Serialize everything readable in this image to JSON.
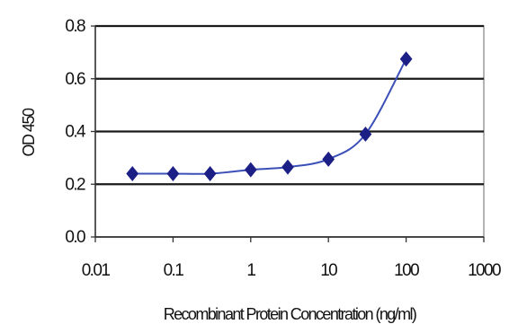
{
  "chart_data": {
    "type": "line",
    "title": "",
    "xlabel": "Recombinant Protein Concentration (ng/ml)",
    "ylabel": "OD 450",
    "x_scale": "log",
    "xlim": [
      0.01,
      1000
    ],
    "ylim": [
      0.0,
      0.8
    ],
    "x_ticks": [
      "0.01",
      "0.1",
      "1",
      "10",
      "100",
      "1000"
    ],
    "y_ticks": [
      "0.0",
      "0.2",
      "0.4",
      "0.6",
      "0.8"
    ],
    "grid": "horizontal",
    "legend": "none",
    "series": [
      {
        "x": [
          0.03,
          0.1,
          0.3,
          1,
          3,
          10,
          30,
          100
        ],
        "y": [
          0.24,
          0.24,
          0.24,
          0.255,
          0.265,
          0.295,
          0.39,
          0.675
        ]
      }
    ],
    "colors": {
      "line": "#3a4fb8",
      "marker": "#1c1f86",
      "grid": "#1a1a1a",
      "axis": "#333333"
    }
  }
}
